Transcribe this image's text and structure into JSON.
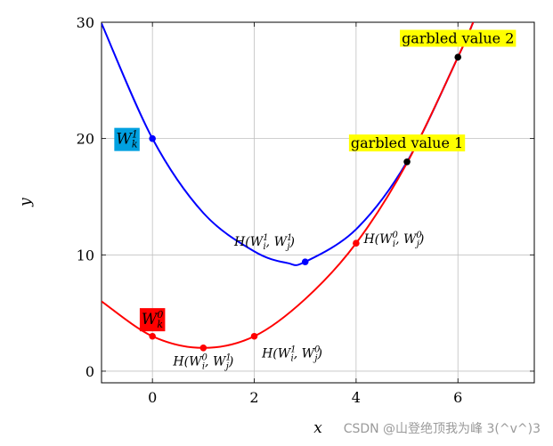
{
  "chart_data": {
    "type": "line",
    "xlabel": "x",
    "ylabel": "y",
    "xlim": [
      -1,
      7.5
    ],
    "ylim": [
      -1,
      30
    ],
    "xticks": [
      0,
      2,
      4,
      6
    ],
    "yticks": [
      0,
      10,
      20,
      30
    ],
    "grid": true,
    "series": [
      {
        "color": "#0000ff",
        "x": [
          -1,
          0,
          1,
          2,
          2.65,
          3,
          4,
          5,
          6,
          6.3
        ],
        "y": [
          29.9,
          20,
          13.6,
          10.3,
          9.3,
          9.4,
          12.2,
          18,
          27,
          30
        ]
      },
      {
        "color": "#ff0000",
        "x": [
          -1,
          0,
          1,
          2,
          3,
          4,
          5,
          6,
          6.3
        ],
        "y": [
          6,
          3,
          2,
          3,
          6.2,
          11,
          17.9,
          27,
          30
        ]
      }
    ],
    "points": [
      {
        "x": 0,
        "y": 20,
        "color": "#0000ff"
      },
      {
        "x": 3,
        "y": 9.4,
        "color": "#0000ff"
      },
      {
        "x": 0,
        "y": 3,
        "color": "#ff0000"
      },
      {
        "x": 1,
        "y": 2,
        "color": "#ff0000"
      },
      {
        "x": 2,
        "y": 3,
        "color": "#ff0000"
      },
      {
        "x": 4,
        "y": 11,
        "color": "#ff0000"
      },
      {
        "x": 5,
        "y": 18,
        "color": "#000000"
      },
      {
        "x": 6,
        "y": 27,
        "color": "#000000"
      }
    ],
    "point_labels": [
      {
        "text": "H(W_i^1, W_j^1)",
        "x": 2.2,
        "y": 10.8,
        "anchor": "middle"
      },
      {
        "text": "H(W_i^0, W_j^0)",
        "x": 4.15,
        "y": 11,
        "anchor": "start"
      },
      {
        "text": "H(W_i^0, W_j^1)",
        "x": 1.0,
        "y": 0.5,
        "anchor": "middle"
      },
      {
        "text": "H(W_i^1, W_j^0)",
        "x": 2.15,
        "y": 1.2,
        "anchor": "start"
      }
    ],
    "annotations": [
      {
        "text": "garbled value 1",
        "x": 5,
        "y": 19.2,
        "bg": "#ffff00"
      },
      {
        "text": "garbled value 2",
        "x": 6,
        "y": 28.2,
        "bg": "#ffff00"
      }
    ],
    "wk_labels": [
      {
        "base": "W",
        "sub": "k",
        "sup": "1",
        "x": -0.5,
        "y": 20,
        "bg": "#00a0e0"
      },
      {
        "base": "W",
        "sub": "k",
        "sup": "0",
        "x": 0.0,
        "y": 4.5,
        "bg": "#ff0000"
      }
    ]
  },
  "watermark": "CSDN @山登绝顶我为峰 3(^v^)3"
}
